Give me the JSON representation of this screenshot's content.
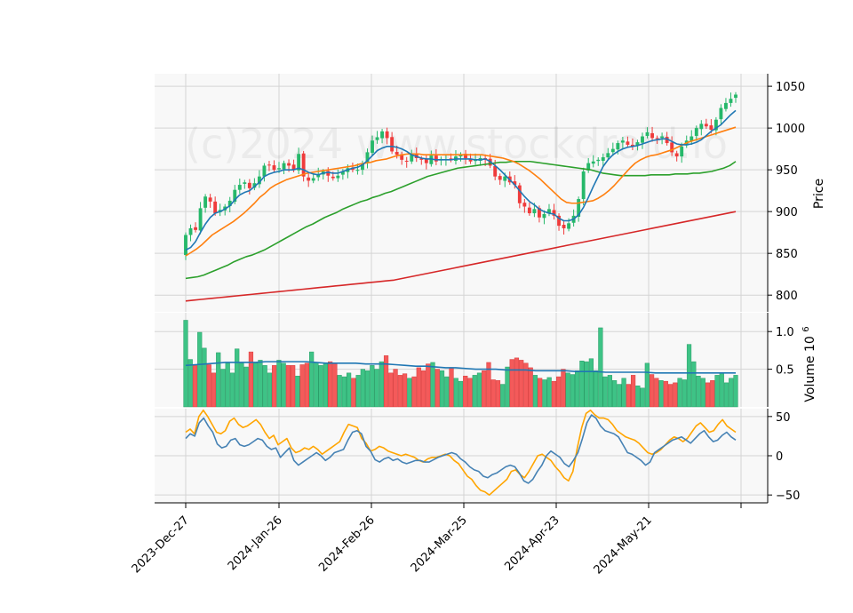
{
  "chart_data": {
    "type": "candlestick",
    "watermark": "(c)2024 www.stockdroid.io",
    "x_ticks": [
      "2023-Dec-27",
      "2024-Jan-26",
      "2024-Feb-26",
      "2024-Mar-25",
      "2024-Apr-23",
      "2024-May-21"
    ],
    "price": {
      "ylabel": "Price",
      "ylim": [
        780,
        1065
      ],
      "yticks": [
        "800",
        "850",
        "900",
        "950",
        "1000",
        "1050"
      ],
      "close": [
        872,
        880,
        878,
        904,
        918,
        912,
        898,
        902,
        906,
        913,
        926,
        932,
        935,
        928,
        934,
        942,
        955,
        956,
        950,
        952,
        958,
        955,
        950,
        969,
        942,
        937,
        940,
        945,
        948,
        943,
        940,
        943,
        948,
        952,
        950,
        950,
        958,
        971,
        985,
        989,
        996,
        988,
        972,
        968,
        962,
        960,
        968,
        964,
        962,
        958,
        967,
        960,
        963,
        963,
        962,
        966,
        968,
        964,
        960,
        962,
        964,
        962,
        955,
        942,
        938,
        942,
        935,
        932,
        910,
        906,
        898,
        903,
        893,
        897,
        903,
        895,
        883,
        880,
        886,
        895,
        915,
        948,
        958,
        960,
        962,
        965,
        970,
        975,
        982,
        985,
        980,
        978,
        983,
        990,
        995,
        988,
        987,
        990,
        982,
        971,
        966,
        978,
        985,
        990,
        1000,
        1005,
        1002,
        998,
        1010,
        1024,
        1030,
        1035,
        1040
      ],
      "ma_short": [
        854,
        857,
        864,
        875,
        885,
        893,
        898,
        900,
        903,
        907,
        914,
        920,
        923,
        925,
        930,
        935,
        942,
        945,
        947,
        948,
        950,
        950,
        950,
        952,
        950,
        947,
        945,
        944,
        946,
        947,
        946,
        946,
        948,
        950,
        952,
        953,
        956,
        961,
        967,
        973,
        976,
        978,
        978,
        977,
        975,
        972,
        968,
        966,
        964,
        963,
        963,
        962,
        962,
        962,
        962,
        963,
        963,
        963,
        963,
        962,
        962,
        963,
        960,
        955,
        950,
        944,
        938,
        932,
        925,
        918,
        912,
        908,
        903,
        900,
        898,
        897,
        892,
        889,
        889,
        891,
        896,
        905,
        917,
        930,
        942,
        954,
        962,
        968,
        972,
        975,
        977,
        978,
        979,
        981,
        983,
        985,
        986,
        987,
        987,
        984,
        981,
        980,
        980,
        981,
        983,
        986,
        991,
        996,
        1000,
        1004,
        1010,
        1016,
        1021
      ],
      "ma_mid": [
        847,
        851,
        855,
        860,
        866,
        872,
        876,
        880,
        884,
        888,
        893,
        898,
        904,
        910,
        917,
        922,
        928,
        932,
        935,
        938,
        940,
        942,
        944,
        946,
        947,
        948,
        949,
        950,
        951,
        952,
        953,
        954,
        955,
        957,
        958,
        959,
        961,
        962,
        963,
        965,
        967,
        968,
        969,
        969,
        969,
        968,
        968,
        968,
        968,
        968,
        968,
        968,
        968,
        968,
        968,
        968,
        968,
        967,
        966,
        965,
        964,
        962,
        960,
        957,
        953,
        949,
        944,
        939,
        933,
        927,
        921,
        915,
        911,
        910,
        910,
        911,
        912,
        913,
        916,
        920,
        925,
        931,
        938,
        945,
        952,
        958,
        962,
        965,
        967,
        968,
        970,
        972,
        974,
        977,
        980,
        983,
        985,
        987,
        989,
        991,
        993,
        995,
        997,
        999,
        1001
      ],
      "ma_long": [
        820,
        821,
        822,
        824,
        827,
        830,
        833,
        836,
        840,
        843,
        846,
        848,
        851,
        854,
        858,
        862,
        866,
        870,
        874,
        878,
        882,
        885,
        889,
        893,
        896,
        899,
        903,
        906,
        909,
        912,
        914,
        917,
        919,
        922,
        924,
        927,
        930,
        933,
        936,
        939,
        942,
        944,
        946,
        948,
        950,
        952,
        953,
        954,
        955,
        956,
        957,
        958,
        959,
        959,
        960,
        960,
        960,
        960,
        959,
        958,
        957,
        956,
        955,
        954,
        953,
        952,
        951,
        950,
        948,
        946,
        945,
        944,
        943,
        943,
        943,
        943,
        943,
        944,
        944,
        944,
        944,
        945,
        945,
        945,
        946,
        946,
        947,
        948,
        950,
        952,
        955,
        960
      ],
      "ma_200": [
        793,
        794,
        795,
        796,
        797,
        798,
        799,
        800,
        801,
        802,
        803,
        804,
        805,
        806,
        807,
        808,
        809,
        810,
        811,
        812,
        813,
        814,
        815,
        816,
        817,
        818,
        820,
        822,
        824,
        826,
        828,
        830,
        832,
        834,
        836,
        838,
        840,
        842,
        844,
        846,
        848,
        850,
        852,
        854,
        856,
        858,
        860,
        862,
        864,
        866,
        868,
        870,
        872,
        874,
        876,
        878,
        880,
        882,
        884,
        886,
        888,
        890,
        892,
        894,
        896,
        898,
        900
      ]
    },
    "volume": {
      "ylabel": "Volume  10",
      "ylabel_exp": "6",
      "ylim": [
        0,
        1.25
      ],
      "yticks": [
        "0.5",
        "1.0"
      ],
      "values": [
        1.15,
        0.63,
        0.55,
        0.99,
        0.78,
        0.56,
        0.45,
        0.72,
        0.5,
        0.58,
        0.45,
        0.77,
        0.58,
        0.53,
        0.73,
        0.58,
        0.62,
        0.55,
        0.45,
        0.55,
        0.62,
        0.58,
        0.55,
        0.55,
        0.41,
        0.56,
        0.58,
        0.73,
        0.59,
        0.55,
        0.58,
        0.6,
        0.58,
        0.42,
        0.4,
        0.45,
        0.38,
        0.42,
        0.5,
        0.48,
        0.55,
        0.5,
        0.6,
        0.68,
        0.45,
        0.5,
        0.42,
        0.44,
        0.38,
        0.4,
        0.52,
        0.48,
        0.57,
        0.59,
        0.5,
        0.48,
        0.4,
        0.52,
        0.38,
        0.34,
        0.41,
        0.38,
        0.42,
        0.45,
        0.48,
        0.59,
        0.36,
        0.35,
        0.3,
        0.53,
        0.63,
        0.65,
        0.62,
        0.58,
        0.52,
        0.42,
        0.38,
        0.36,
        0.39,
        0.34,
        0.4,
        0.5,
        0.45,
        0.43,
        0.48,
        0.61,
        0.6,
        0.64,
        0.48,
        1.05,
        0.4,
        0.42,
        0.35,
        0.3,
        0.38,
        0.3,
        0.42,
        0.28,
        0.25,
        0.58,
        0.43,
        0.38,
        0.35,
        0.34,
        0.3,
        0.32,
        0.38,
        0.36,
        0.83,
        0.6,
        0.41,
        0.38,
        0.32,
        0.35,
        0.42,
        0.45,
        0.32,
        0.38,
        0.42
      ],
      "ma": [
        0.55,
        0.56,
        0.57,
        0.58,
        0.59,
        0.59,
        0.59,
        0.59,
        0.6,
        0.6,
        0.6,
        0.6,
        0.6,
        0.59,
        0.58,
        0.58,
        0.58,
        0.58,
        0.57,
        0.57,
        0.57,
        0.56,
        0.55,
        0.54,
        0.54,
        0.53,
        0.52,
        0.52,
        0.51,
        0.5,
        0.5,
        0.5,
        0.49,
        0.49,
        0.49,
        0.48,
        0.48,
        0.48,
        0.48,
        0.47,
        0.47,
        0.47,
        0.46,
        0.46,
        0.46,
        0.46,
        0.46,
        0.45,
        0.45,
        0.45,
        0.45,
        0.45,
        0.45,
        0.45,
        0.45,
        0.45
      ]
    },
    "oscillator": {
      "ylim": [
        -60,
        60
      ],
      "yticks": [
        "50",
        "0",
        "−50"
      ],
      "line_a": [
        22,
        28,
        25,
        42,
        48,
        38,
        30,
        15,
        10,
        12,
        20,
        22,
        14,
        12,
        14,
        18,
        22,
        20,
        12,
        8,
        10,
        -2,
        4,
        10,
        -6,
        -12,
        -8,
        -4,
        0,
        4,
        0,
        -6,
        -2,
        4,
        6,
        8,
        20,
        30,
        32,
        28,
        12,
        6,
        -5,
        -8,
        -4,
        -2,
        -6,
        -4,
        -8,
        -10,
        -8,
        -6,
        -6,
        -8,
        -8,
        -5,
        -2,
        0,
        2,
        4,
        2,
        -4,
        -8,
        -14,
        -18,
        -20,
        -26,
        -28,
        -24,
        -22,
        -18,
        -14,
        -12,
        -14,
        -22,
        -32,
        -35,
        -30,
        -20,
        -12,
        0,
        6,
        2,
        -2,
        -10,
        -14,
        -6,
        4,
        22,
        42,
        52,
        48,
        38,
        32,
        30,
        28,
        24,
        14,
        4,
        2,
        -2,
        -6,
        -12,
        -8,
        4,
        8,
        12,
        16,
        20,
        22,
        24,
        20,
        16,
        22,
        28,
        32,
        24,
        18,
        20,
        26,
        30,
        24,
        20
      ],
      "line_b": [
        30,
        34,
        28,
        50,
        58,
        50,
        40,
        30,
        28,
        32,
        44,
        48,
        40,
        36,
        38,
        42,
        46,
        40,
        30,
        22,
        26,
        14,
        18,
        22,
        10,
        4,
        6,
        10,
        8,
        12,
        8,
        2,
        6,
        10,
        14,
        18,
        30,
        40,
        38,
        36,
        22,
        16,
        6,
        8,
        12,
        10,
        6,
        4,
        2,
        0,
        2,
        0,
        -2,
        -6,
        -8,
        -4,
        -2,
        -2,
        0,
        2,
        0,
        -6,
        -10,
        -18,
        -26,
        -30,
        -38,
        -44,
        -46,
        -50,
        -45,
        -40,
        -35,
        -30,
        -20,
        -18,
        -24,
        -28,
        -20,
        -10,
        0,
        2,
        -2,
        -6,
        -14,
        -20,
        -28,
        -32,
        -20,
        10,
        36,
        54,
        58,
        52,
        48,
        48,
        46,
        40,
        32,
        28,
        24,
        22,
        20,
        16,
        10,
        4,
        2,
        4,
        8,
        14,
        20,
        24,
        22,
        18,
        22,
        30,
        38,
        42,
        36,
        30,
        32,
        40,
        46,
        38,
        34,
        30
      ]
    }
  }
}
